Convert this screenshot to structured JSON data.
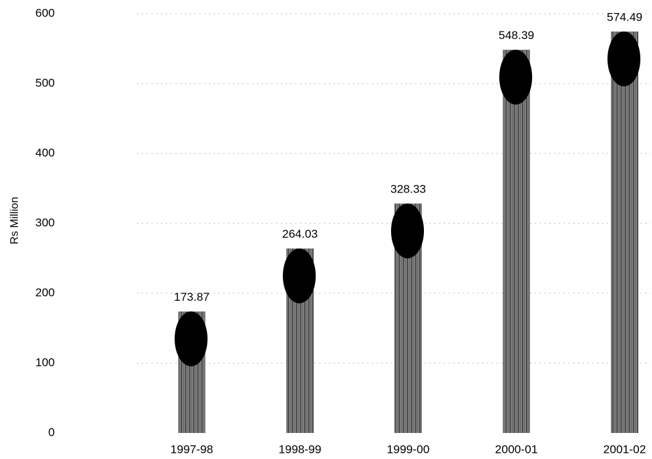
{
  "chart_data": {
    "type": "bar",
    "y_label": "Rs Million",
    "categories": [
      "1997-98",
      "1998-99",
      "1999-00",
      "2000-01",
      "2001-02"
    ],
    "values": [
      173.87,
      264.03,
      328.33,
      548.39,
      574.49
    ],
    "color": "#777777",
    "ylim": [
      0,
      600
    ],
    "yticks": [
      0,
      100,
      200,
      300,
      400,
      500,
      600
    ],
    "grid": true
  }
}
